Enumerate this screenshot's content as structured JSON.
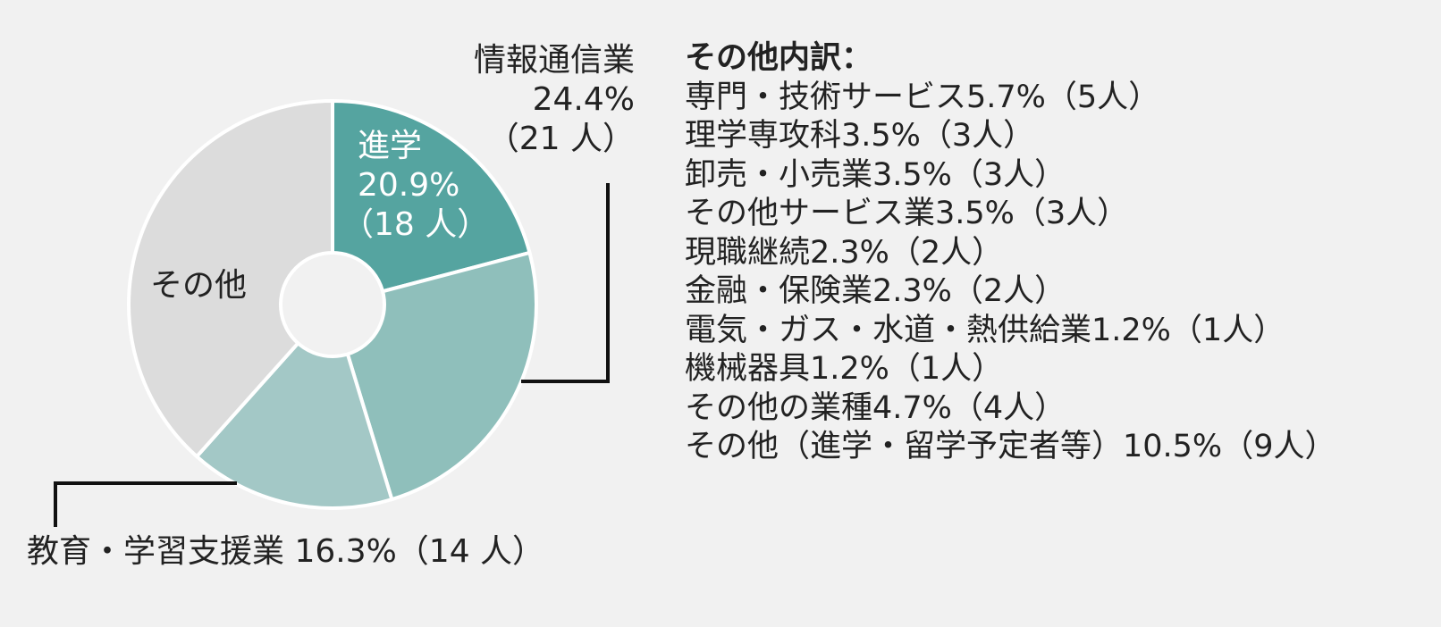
{
  "chart_data": {
    "type": "pie",
    "donut": true,
    "slices": [
      {
        "name": "進学",
        "percent": 20.9,
        "count": 18,
        "percent_label": "20.9%",
        "count_label": "（18 人）",
        "color": "#55a4a0"
      },
      {
        "name": "情報通信業",
        "percent": 24.4,
        "count": 21,
        "percent_label": "24.4%",
        "count_label": "（21 人）",
        "color": "#8fbfbb"
      },
      {
        "name": "教育・学習支援業",
        "percent": 16.3,
        "count": 14,
        "full_label": "教育・学習支援業 16.3%（14 人）",
        "color": "#a3c8c6"
      },
      {
        "name": "その他",
        "percent": 38.4,
        "color": "#dcdcdc"
      }
    ],
    "breakdown": {
      "title": "その他内訳：",
      "items": [
        "専門・技術サービス5.7%（5人）",
        "理学専攻科3.5%（3人）",
        "卸売・小売業3.5%（3人）",
        "その他サービス業3.5%（3人）",
        "現職継続2.3%（2人）",
        "金融・保険業2.3%（2人）",
        "電気・ガス・水道・熱供給業1.2%（1人）",
        "機械器具1.2%（1人）",
        "その他の業種4.7%（4人）",
        "その他（進学・留学予定者等）10.5%（9人）"
      ]
    }
  }
}
